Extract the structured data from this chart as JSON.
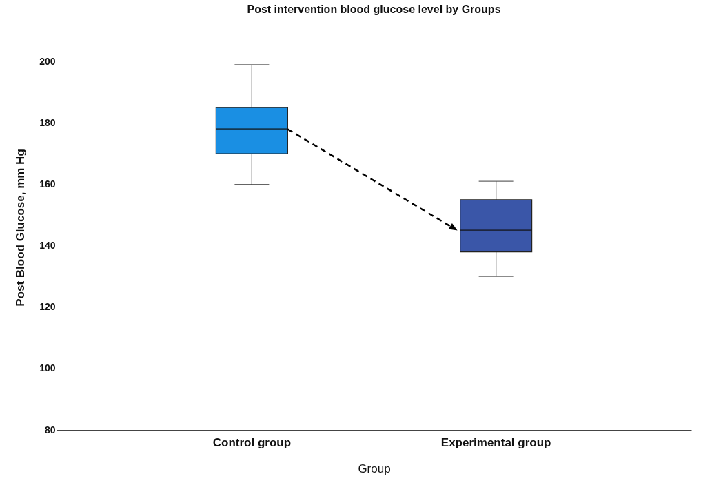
{
  "chart_data": {
    "type": "box",
    "title": "Post intervention blood glucose level by Groups",
    "xlabel": "Group",
    "ylabel": "Post Blood Glucose, mm Hg",
    "categories": [
      "Control group",
      "Experimental group"
    ],
    "boxes": [
      {
        "low": 160,
        "q1": 170,
        "median": 178,
        "q3": 185,
        "high": 199
      },
      {
        "low": 130,
        "q1": 138,
        "median": 145,
        "q3": 155,
        "high": 161
      }
    ],
    "colors": [
      "#1a8fe3",
      "#3a56a8"
    ],
    "ylim": [
      80,
      212
    ],
    "yticks": [
      80,
      100,
      120,
      140,
      160,
      180,
      200
    ],
    "grid": false
  }
}
